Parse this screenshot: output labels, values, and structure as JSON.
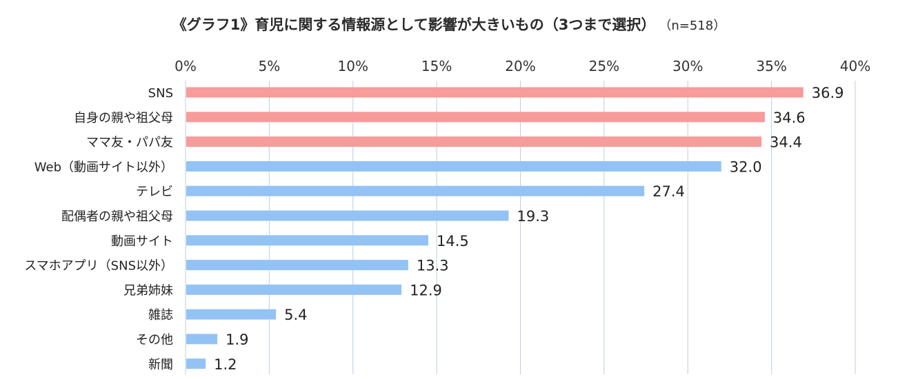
{
  "chart_data": {
    "type": "bar",
    "orientation": "horizontal",
    "title": "《グラフ1》育児に関する情報源として影響が大きいもの（3つまで選択）",
    "note": "（n=518）",
    "xlim": [
      0,
      40
    ],
    "x_ticks": [
      "0%",
      "5%",
      "10%",
      "15%",
      "20%",
      "25%",
      "30%",
      "35%",
      "40%"
    ],
    "grid": true,
    "categories": [
      "SNS",
      "自身の親や祖父母",
      "ママ友・パパ友",
      "Web（動画サイト以外）",
      "テレビ",
      "配偶者の親や祖父母",
      "動画サイト",
      "スマホアプリ（SNS以外）",
      "兄弟姉妹",
      "雑誌",
      "その他",
      "新聞"
    ],
    "values": [
      36.9,
      34.6,
      34.4,
      32.0,
      27.4,
      19.3,
      14.5,
      13.3,
      12.9,
      5.4,
      1.9,
      1.2
    ],
    "value_labels": [
      "36.9",
      "34.6",
      "34.4",
      "32.0",
      "27.4",
      "19.3",
      "14.5",
      "13.3",
      "12.9",
      "5.4",
      "1.9",
      "1.2"
    ],
    "highlight_count": 3,
    "colors": {
      "highlight": "#f79b9b",
      "normal": "#93c3f5",
      "grid": "#b8cfe0"
    }
  }
}
